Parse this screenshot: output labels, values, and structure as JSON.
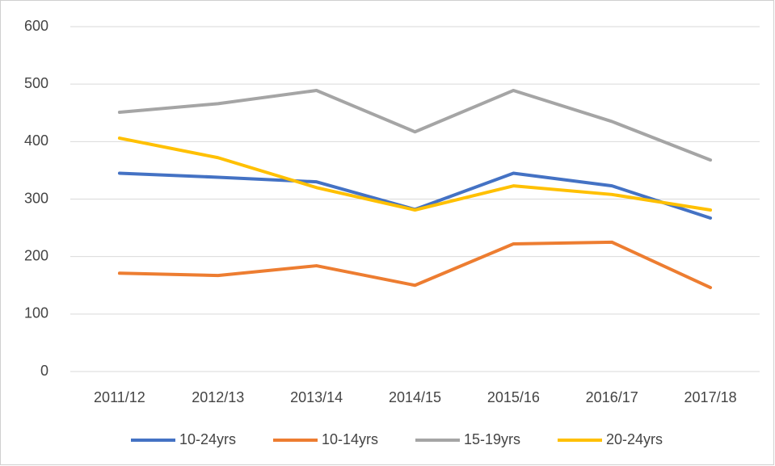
{
  "chart_data": {
    "type": "line",
    "categories": [
      "2011/12",
      "2012/13",
      "2013/14",
      "2014/15",
      "2015/16",
      "2016/17",
      "2017/18"
    ],
    "series": [
      {
        "name": "10-24yrs",
        "color": "#4472c4",
        "values": [
          345,
          338,
          330,
          282,
          345,
          323,
          267
        ]
      },
      {
        "name": "10-14yrs",
        "color": "#ed7d31",
        "values": [
          171,
          167,
          184,
          150,
          222,
          225,
          146
        ]
      },
      {
        "name": "15-19yrs",
        "color": "#a5a5a5",
        "values": [
          451,
          466,
          489,
          417,
          489,
          435,
          368
        ]
      },
      {
        "name": "20-24yrs",
        "color": "#ffc000",
        "values": [
          406,
          372,
          320,
          281,
          323,
          308,
          281
        ]
      }
    ],
    "ylim": [
      0,
      600
    ],
    "yticks": [
      0,
      100,
      200,
      300,
      400,
      500,
      600
    ],
    "grid": true,
    "legend": "bottom"
  }
}
